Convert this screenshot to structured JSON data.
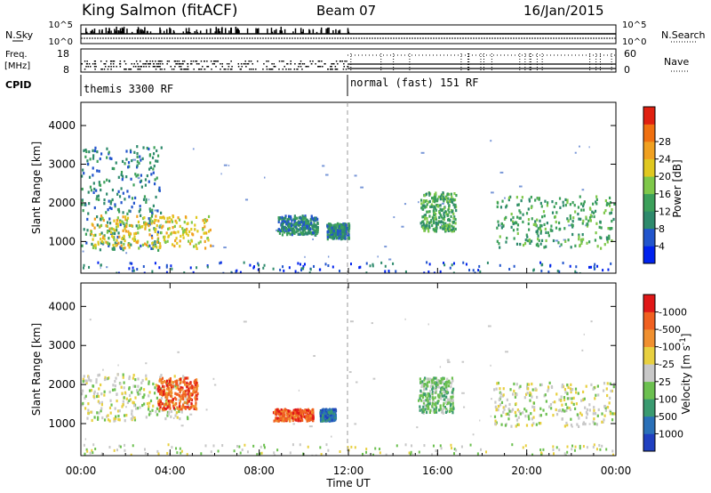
{
  "header": {
    "title": "King Salmon (fitACF)",
    "beam": "Beam 07",
    "date": "16/Jan/2015"
  },
  "noise_panel": {
    "left_label": "N.Sky",
    "right_label": "N.Search",
    "left_ticks": [
      "10^5",
      "10^0"
    ],
    "right_ticks": [
      "10^5",
      "10^0"
    ]
  },
  "freq_panel": {
    "left_label_line1": "Freq.",
    "left_label_line2": "[MHz]",
    "left_ticks": [
      "18",
      "8"
    ],
    "right_label": "Nave",
    "right_ticks": [
      "60",
      "0"
    ]
  },
  "cpid": {
    "label": "CPID",
    "segments": [
      {
        "name": "themis 3300 RF",
        "start_hour": 0
      },
      {
        "name": "normal (fast) 151 RF",
        "start_hour": 12
      }
    ]
  },
  "chart_data": [
    {
      "type": "heatmap",
      "panel": "power",
      "ylabel": "Slant Range [km]",
      "yticks": [
        1000,
        2000,
        3000,
        4000
      ],
      "ylim": [
        180,
        4600
      ],
      "xlim_hours": [
        0,
        24
      ],
      "colorbar": {
        "label": "Power [dB]",
        "ticks": [
          "4",
          "8",
          "12",
          "16",
          "20",
          "24",
          "28"
        ],
        "colors": [
          "#0022ee",
          "#2255cc",
          "#2e8a6c",
          "#3ca05a",
          "#7fc84a",
          "#e0c820",
          "#f0a020",
          "#f07010",
          "#e02010"
        ]
      },
      "regions": [
        {
          "x": [
            0.0,
            3.6
          ],
          "y": [
            800,
            3500
          ],
          "level": 2
        },
        {
          "x": [
            0.4,
            5.8
          ],
          "y": [
            850,
            1700
          ],
          "level": 5
        },
        {
          "x": [
            8.8,
            10.6
          ],
          "y": [
            1200,
            1700
          ],
          "level": 2
        },
        {
          "x": [
            11.0,
            12.0
          ],
          "y": [
            1100,
            1500
          ],
          "level": 2
        },
        {
          "x": [
            15.2,
            16.8
          ],
          "y": [
            1300,
            2300
          ],
          "level": 3
        },
        {
          "x": [
            18.6,
            23.9
          ],
          "y": [
            850,
            2200
          ],
          "level": 3
        }
      ]
    },
    {
      "type": "heatmap",
      "panel": "velocity",
      "ylabel": "Slant Range [km]",
      "yticks": [
        1000,
        2000,
        3000,
        4000
      ],
      "ylim": [
        180,
        4600
      ],
      "xlim_hours": [
        0,
        24
      ],
      "xlabel": "Time UT",
      "xticks": [
        "00:00",
        "04:00",
        "08:00",
        "12:00",
        "16:00",
        "20:00",
        "00:00"
      ],
      "colorbar": {
        "label": "Velocity [m s^-1]",
        "ticks": [
          "1000",
          "500",
          "100",
          "25",
          "-25",
          "-100",
          "-500",
          "-1000"
        ],
        "colors": [
          "#2040c0",
          "#2a70b8",
          "#3a9a70",
          "#6cc050",
          "#c8c8c8",
          "#e8d040",
          "#f09030",
          "#f06020",
          "#e01818"
        ]
      },
      "regions": [
        {
          "x": [
            0.0,
            4.8
          ],
          "y": [
            1100,
            2300
          ],
          "level": 4
        },
        {
          "x": [
            3.4,
            5.2
          ],
          "y": [
            1400,
            2200
          ],
          "level": 7
        },
        {
          "x": [
            8.6,
            10.4
          ],
          "y": [
            1100,
            1400
          ],
          "level": 7
        },
        {
          "x": [
            10.7,
            11.4
          ],
          "y": [
            1100,
            1400
          ],
          "level": 1
        },
        {
          "x": [
            15.1,
            16.7
          ],
          "y": [
            1300,
            2200
          ],
          "level": 3
        },
        {
          "x": [
            18.5,
            23.9
          ],
          "y": [
            950,
            2100
          ],
          "level": 4
        }
      ]
    }
  ]
}
